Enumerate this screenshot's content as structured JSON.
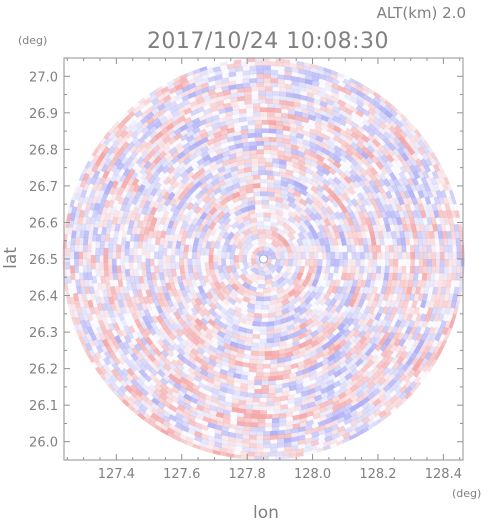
{
  "chart_data": {
    "type": "heatmap",
    "title": "2017/10/24 10:08:30",
    "altitude_label": "ALT(km) 2.0",
    "xlabel": "lon",
    "ylabel": "lat",
    "x_unit": "(deg)",
    "y_unit": "(deg)",
    "xlim": [
      127.24,
      128.46
    ],
    "ylim": [
      25.95,
      27.05
    ],
    "x_ticks": [
      "127.4",
      "127.6",
      "127.8",
      "128.0",
      "128.2",
      "128.4"
    ],
    "y_ticks": [
      "26.0",
      "26.1",
      "26.2",
      "26.3",
      "26.4",
      "26.5",
      "26.6",
      "26.7",
      "26.8",
      "26.9",
      "27.0"
    ],
    "center": {
      "lon": 127.85,
      "lat": 26.5
    },
    "radius_deg_lat": 0.55,
    "colors": {
      "positive": "#f4a0a0",
      "negative": "#a8a8f4",
      "axis": "#909090",
      "text": "#808080"
    }
  }
}
